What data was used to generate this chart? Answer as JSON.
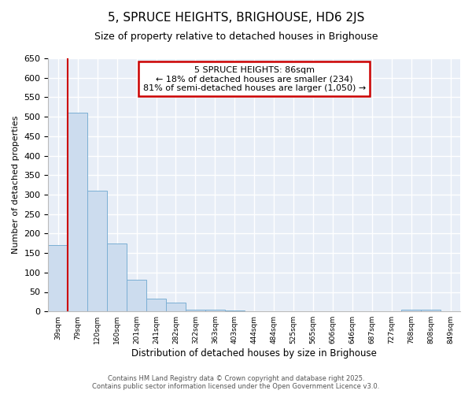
{
  "title": "5, SPRUCE HEIGHTS, BRIGHOUSE, HD6 2JS",
  "subtitle": "Size of property relative to detached houses in Brighouse",
  "xlabel": "Distribution of detached houses by size in Brighouse",
  "ylabel": "Number of detached properties",
  "bar_labels": [
    "39sqm",
    "79sqm",
    "120sqm",
    "160sqm",
    "201sqm",
    "241sqm",
    "282sqm",
    "322sqm",
    "363sqm",
    "403sqm",
    "444sqm",
    "484sqm",
    "525sqm",
    "565sqm",
    "606sqm",
    "646sqm",
    "687sqm",
    "727sqm",
    "768sqm",
    "808sqm",
    "849sqm"
  ],
  "bar_values": [
    170,
    510,
    310,
    175,
    82,
    33,
    22,
    5,
    5,
    3,
    0,
    0,
    0,
    0,
    0,
    0,
    0,
    0,
    5,
    5,
    0
  ],
  "bar_color": "#ccdcee",
  "bar_edge_color": "#7bafd4",
  "ylim": [
    0,
    650
  ],
  "yticks": [
    0,
    50,
    100,
    150,
    200,
    250,
    300,
    350,
    400,
    450,
    500,
    550,
    600,
    650
  ],
  "red_line_x": 0.5,
  "annotation_text": "5 SPRUCE HEIGHTS: 86sqm\n← 18% of detached houses are smaller (234)\n81% of semi-detached houses are larger (1,050) →",
  "annotation_box_color": "#ffffff",
  "annotation_box_edge": "#cc0000",
  "red_line_color": "#cc0000",
  "footer_line1": "Contains HM Land Registry data © Crown copyright and database right 2025.",
  "footer_line2": "Contains public sector information licensed under the Open Government Licence v3.0.",
  "plot_bg_color": "#e8eef7",
  "fig_bg_color": "#ffffff",
  "grid_color": "#ffffff",
  "title_fontsize": 11,
  "subtitle_fontsize": 9
}
